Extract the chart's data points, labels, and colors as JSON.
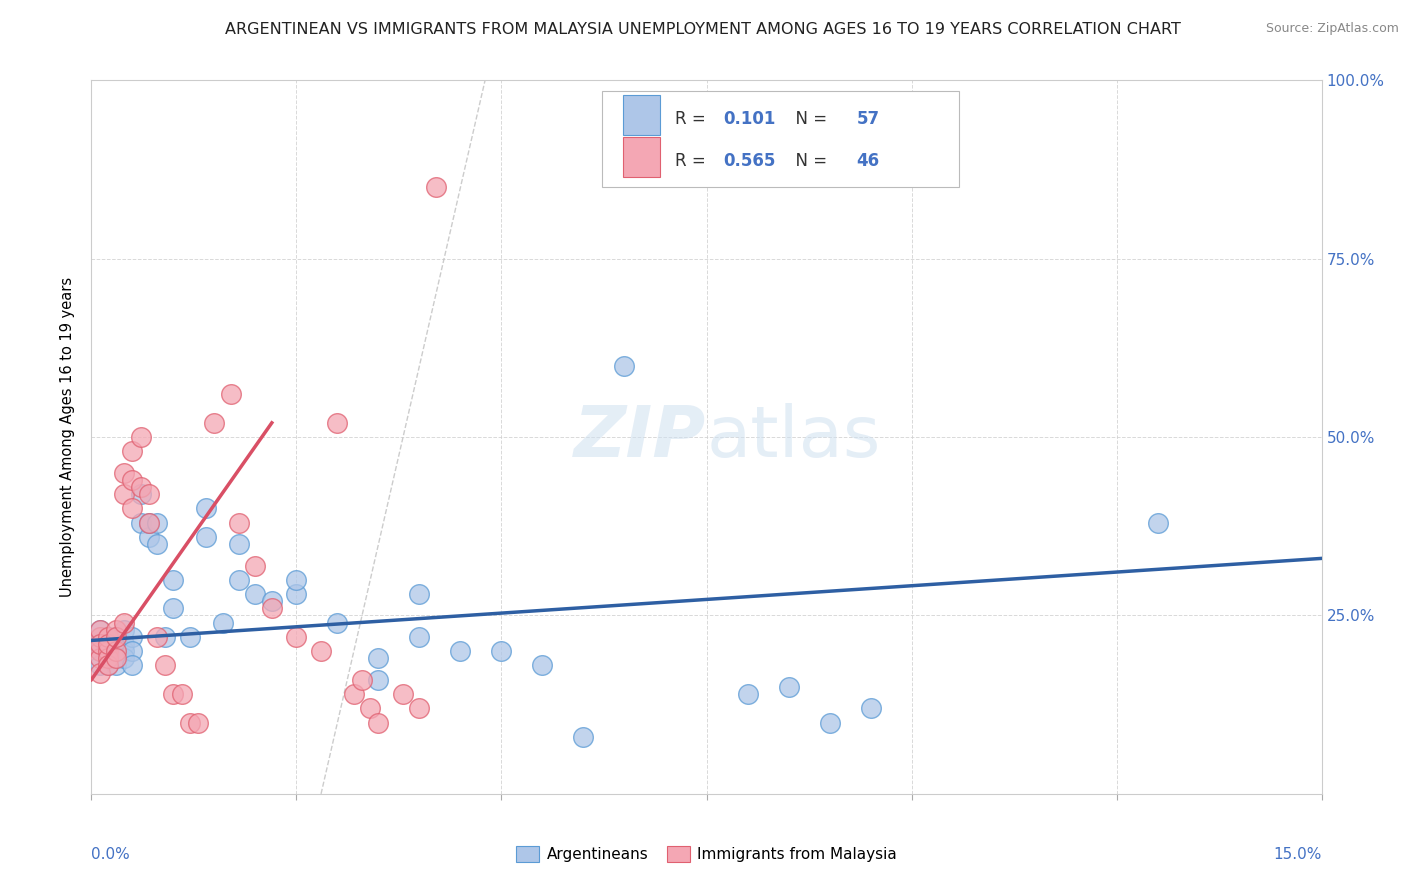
{
  "title": "ARGENTINEAN VS IMMIGRANTS FROM MALAYSIA UNEMPLOYMENT AMONG AGES 16 TO 19 YEARS CORRELATION CHART",
  "source": "Source: ZipAtlas.com",
  "ylabel": "Unemployment Among Ages 16 to 19 years",
  "right_yticks": [
    "100.0%",
    "75.0%",
    "50.0%",
    "25.0%"
  ],
  "right_ytick_vals": [
    1.0,
    0.75,
    0.5,
    0.25
  ],
  "legend_blue_r": "0.101",
  "legend_blue_n": "57",
  "legend_pink_r": "0.565",
  "legend_pink_n": "46",
  "legend_label_blue": "Argentineans",
  "legend_label_pink": "Immigrants from Malaysia",
  "blue_color": "#aec6e8",
  "blue_edge_color": "#5b9bd5",
  "pink_color": "#f4a7b4",
  "pink_edge_color": "#e06070",
  "blue_trend_color": "#2e5fa3",
  "pink_trend_color": "#d94f65",
  "dashed_line_color": "#c0c0c0",
  "title_color": "#222222",
  "source_color": "#888888",
  "axis_label_color": "#4472c4",
  "legend_r_color": "#4472c4",
  "xlim": [
    0.0,
    0.15
  ],
  "ylim": [
    0.0,
    1.0
  ],
  "blue_x": [
    0.001,
    0.001,
    0.001,
    0.001,
    0.001,
    0.002,
    0.002,
    0.002,
    0.002,
    0.002,
    0.002,
    0.003,
    0.003,
    0.003,
    0.003,
    0.003,
    0.004,
    0.004,
    0.004,
    0.004,
    0.005,
    0.005,
    0.005,
    0.006,
    0.006,
    0.007,
    0.007,
    0.008,
    0.008,
    0.009,
    0.01,
    0.01,
    0.012,
    0.014,
    0.014,
    0.016,
    0.018,
    0.018,
    0.02,
    0.022,
    0.025,
    0.025,
    0.03,
    0.035,
    0.035,
    0.04,
    0.04,
    0.045,
    0.05,
    0.055,
    0.06,
    0.065,
    0.08,
    0.085,
    0.09,
    0.095,
    0.13
  ],
  "blue_y": [
    0.22,
    0.2,
    0.18,
    0.21,
    0.23,
    0.2,
    0.19,
    0.22,
    0.21,
    0.18,
    0.2,
    0.21,
    0.19,
    0.22,
    0.2,
    0.18,
    0.21,
    0.23,
    0.2,
    0.19,
    0.22,
    0.2,
    0.18,
    0.38,
    0.42,
    0.36,
    0.38,
    0.35,
    0.38,
    0.22,
    0.26,
    0.3,
    0.22,
    0.36,
    0.4,
    0.24,
    0.3,
    0.35,
    0.28,
    0.27,
    0.28,
    0.3,
    0.24,
    0.19,
    0.16,
    0.28,
    0.22,
    0.2,
    0.2,
    0.18,
    0.08,
    0.6,
    0.14,
    0.15,
    0.1,
    0.12,
    0.38
  ],
  "pink_x": [
    0.001,
    0.001,
    0.001,
    0.001,
    0.001,
    0.001,
    0.002,
    0.002,
    0.002,
    0.002,
    0.002,
    0.003,
    0.003,
    0.003,
    0.003,
    0.004,
    0.004,
    0.004,
    0.005,
    0.005,
    0.005,
    0.006,
    0.006,
    0.007,
    0.007,
    0.008,
    0.009,
    0.01,
    0.011,
    0.012,
    0.013,
    0.015,
    0.017,
    0.018,
    0.02,
    0.022,
    0.025,
    0.028,
    0.03,
    0.032,
    0.033,
    0.034,
    0.035,
    0.038,
    0.04,
    0.042
  ],
  "pink_y": [
    0.2,
    0.22,
    0.19,
    0.23,
    0.17,
    0.21,
    0.2,
    0.22,
    0.19,
    0.21,
    0.18,
    0.23,
    0.2,
    0.19,
    0.22,
    0.24,
    0.42,
    0.45,
    0.4,
    0.44,
    0.48,
    0.43,
    0.5,
    0.38,
    0.42,
    0.22,
    0.18,
    0.14,
    0.14,
    0.1,
    0.1,
    0.52,
    0.56,
    0.38,
    0.32,
    0.26,
    0.22,
    0.2,
    0.52,
    0.14,
    0.16,
    0.12,
    0.1,
    0.14,
    0.12,
    0.85
  ]
}
